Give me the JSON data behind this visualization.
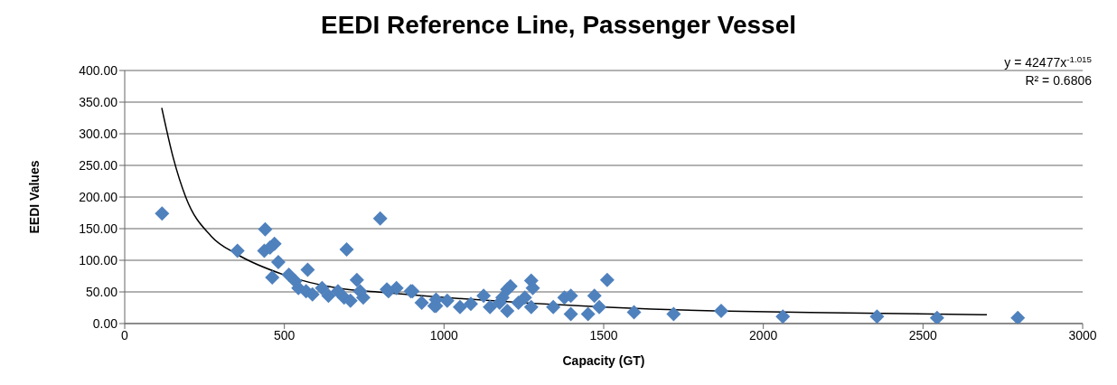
{
  "chart_data": {
    "type": "scatter",
    "title": "EEDI Reference Line, Passenger Vessel",
    "xlabel": "Capacity  (GT)",
    "ylabel": "EEDI Values",
    "annotations": [
      "y = 42477x$^{-1.015}$",
      "R² = 0.6806"
    ],
    "xlim": [
      0,
      3000
    ],
    "xticks": [
      0,
      500,
      1000,
      1500,
      2000,
      2500,
      3000
    ],
    "ylim": [
      0,
      400
    ],
    "yticks": [
      {
        "value": 0,
        "label": "0.00"
      },
      {
        "value": 50,
        "label": "50.00"
      },
      {
        "value": 100,
        "label": "100.00"
      },
      {
        "value": 150,
        "label": "150.00"
      },
      {
        "value": 200,
        "label": "200.00"
      },
      {
        "value": 250,
        "label": "250.00"
      },
      {
        "value": 300,
        "label": "300.00"
      },
      {
        "value": 350,
        "label": "350.00"
      },
      {
        "value": 400,
        "label": "400.00"
      }
    ],
    "grid": "y",
    "legend": false,
    "marker": "diamond",
    "series": [
      {
        "color": "#4f81bd",
        "x": [
          117,
          353,
          440,
          437,
          469,
          455,
          481,
          462,
          573,
          695,
          800,
          514,
          534,
          544,
          568,
          588,
          618,
          638,
          668,
          687,
          707,
          727,
          737,
          747,
          826,
          851,
          901,
          930,
          970,
          821,
          896,
          975,
          975,
          1010,
          1050,
          1084,
          1124,
          1144,
          1174,
          1183,
          1198,
          1208,
          1198,
          1233,
          1253,
          1273,
          1278,
          1273,
          1342,
          1377,
          1397,
          1397,
          1451,
          1471,
          1486,
          1511,
          1595,
          1719,
          1868,
          2061,
          2356,
          2544,
          2797
        ],
        "values": [
          174,
          115,
          149,
          115,
          126,
          120,
          97,
          73,
          85,
          117,
          166,
          77,
          67,
          56,
          51,
          46,
          56,
          44,
          51,
          41,
          36,
          69,
          51,
          41,
          51,
          56,
          51,
          33,
          28,
          54,
          51,
          38,
          28,
          36,
          26,
          31,
          44,
          26,
          33,
          41,
          54,
          59,
          20,
          33,
          41,
          68,
          56,
          26,
          26,
          41,
          44,
          15,
          15,
          44,
          26,
          69,
          18,
          15,
          20,
          11,
          11,
          9,
          9
        ]
      },
      {
        "type": "line",
        "color": "#000000",
        "line_style": "solid",
        "marker": "none",
        "x": [
          116,
          152,
          191,
          271,
          350,
          499,
          667,
          816,
          1500,
          1650,
          1848,
          2200,
          2700
        ],
        "values": [
          341,
          262,
          200,
          138,
          110,
          77,
          56,
          49,
          26,
          23,
          20,
          17,
          14
        ]
      }
    ]
  }
}
